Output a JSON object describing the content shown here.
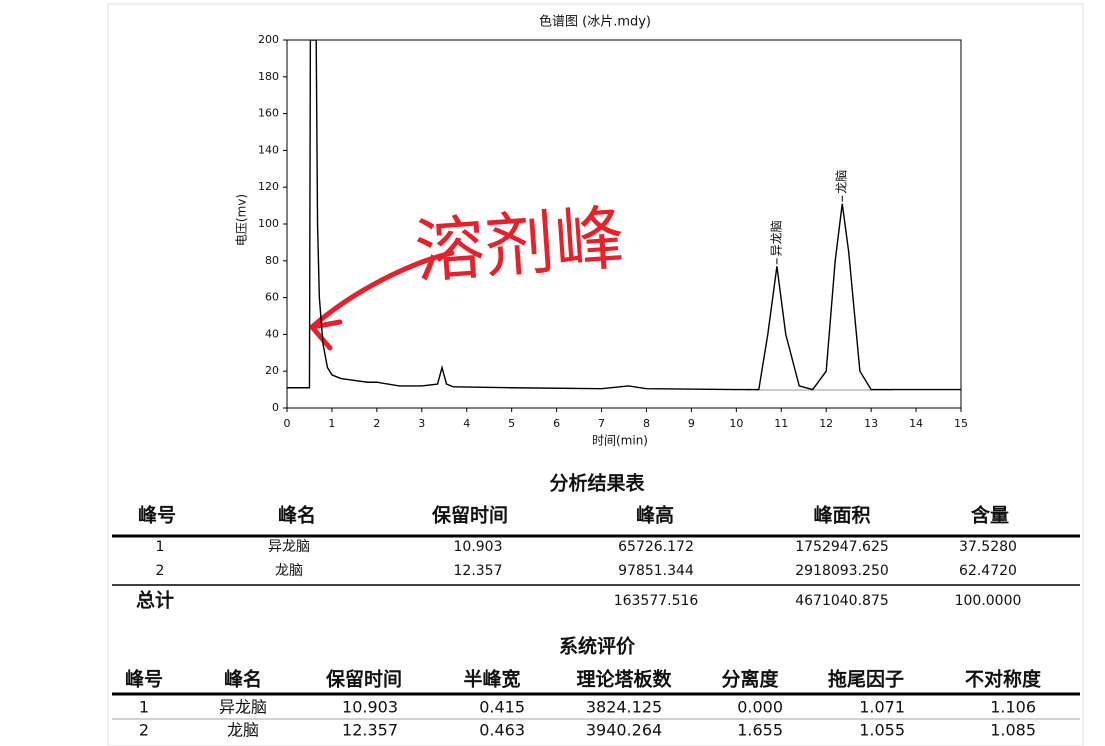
{
  "chart_data": {
    "type": "line",
    "title": "色谱图 (冰片.mdy)",
    "x_label": "时间(min)",
    "y_label": "电压(mv)",
    "x": [
      0,
      0.5,
      0.52,
      0.65,
      0.68,
      0.72,
      0.8,
      0.9,
      1.0,
      1.2,
      1.5,
      1.8,
      2.0,
      2.5,
      3.0,
      3.35,
      3.45,
      3.55,
      3.7,
      5.0,
      7.0,
      7.6,
      8.0,
      10.0,
      10.5,
      10.7,
      10.903,
      11.1,
      11.4,
      11.7,
      12.0,
      12.2,
      12.357,
      12.5,
      12.75,
      13.0,
      15.0
    ],
    "series": [
      {
        "name": "signal",
        "color": "#000000",
        "values": [
          11,
          11,
          200,
          200,
          100,
          60,
          35,
          22,
          18,
          16,
          15,
          14,
          14,
          12,
          12,
          13,
          22,
          13,
          11.5,
          11,
          10.5,
          12,
          10.5,
          10,
          10,
          40,
          77,
          40,
          12,
          10,
          20,
          80,
          111,
          85,
          20,
          10,
          10
        ]
      }
    ],
    "xlim": [
      0,
      15
    ],
    "ylim": [
      0,
      200
    ],
    "xticks": [
      0,
      1,
      2,
      3,
      4,
      5,
      6,
      7,
      8,
      9,
      10,
      11,
      12,
      13,
      14,
      15
    ],
    "yticks": [
      0,
      20,
      40,
      60,
      80,
      100,
      120,
      140,
      160,
      180,
      200
    ],
    "annotations": [
      {
        "text": "异龙脑",
        "x": 10.903
      },
      {
        "text": "龙脑",
        "x": 12.357
      }
    ],
    "handwritten_note": "溶剂峰",
    "note_color": "#e8202a"
  },
  "results_table": {
    "title": "分析结果表",
    "headers": [
      "峰号",
      "峰名",
      "保留时间",
      "峰高",
      "峰面积",
      "含量"
    ],
    "rows": [
      [
        "1",
        "异龙脑",
        "10.903",
        "65726.172",
        "1752947.625",
        "37.5280"
      ],
      [
        "2",
        "龙脑",
        "12.357",
        "97851.344",
        "2918093.250",
        "62.4720"
      ]
    ],
    "total": {
      "label": "总计",
      "values": [
        "163577.516",
        "4671040.875",
        "100.0000"
      ]
    }
  },
  "evaluation_table": {
    "title": "系统评价",
    "headers": [
      "峰号",
      "峰名",
      "保留时间",
      "半峰宽",
      "理论塔板数",
      "分离度",
      "拖尾因子",
      "不对称度"
    ],
    "rows": [
      [
        "1",
        "异龙脑",
        "10.903",
        "0.415",
        "3824.125",
        "0.000",
        "1.071",
        "1.106"
      ],
      [
        "2",
        "龙脑",
        "12.357",
        "0.463",
        "3940.264",
        "1.655",
        "1.055",
        "1.085"
      ]
    ]
  }
}
